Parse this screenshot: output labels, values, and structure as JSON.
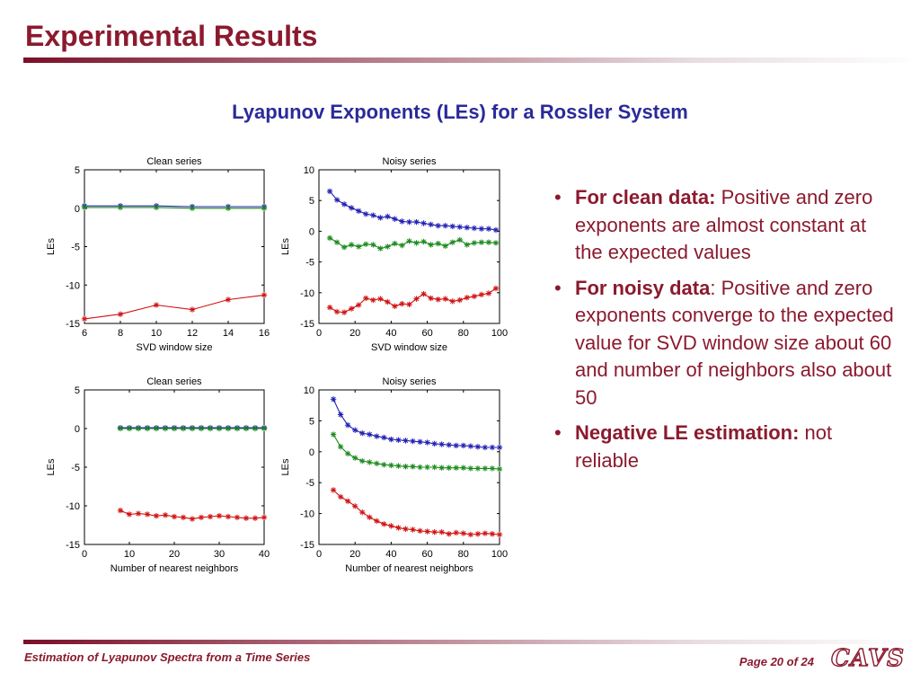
{
  "slide": {
    "title": "Experimental Results",
    "subtitle": "Lyapunov Exponents (LEs)  for a Rossler System"
  },
  "bullets": [
    {
      "bold": "For clean data:",
      "text": " Positive and zero exponents are almost constant at  the expected values"
    },
    {
      "bold": "For noisy data",
      "text": ": Positive and zero exponents converge to the expected value for SVD window size about 60 and number of neighbors also about 50"
    },
    {
      "bold": "Negative LE estimation:",
      "text": " not reliable"
    }
  ],
  "footer": {
    "left": "Estimation of Lyapunov Spectra from a Time Series",
    "page": "Page 20 of 24",
    "logo": "CAVS"
  },
  "colors": {
    "accent": "#8b1a2e",
    "subtitle": "#2a2a9a",
    "positive": "#1f1fb4",
    "zero": "#1a8a1a",
    "negative": "#d01010"
  },
  "chart_data": [
    {
      "type": "line",
      "title": "Clean series",
      "xlabel": "SVD window size",
      "ylabel": "LEs",
      "xlim": [
        6,
        16
      ],
      "ylim": [
        -15,
        5
      ],
      "xticks": [
        6,
        8,
        10,
        12,
        14,
        16
      ],
      "yticks": [
        5,
        0,
        -5,
        -10,
        -15
      ],
      "marker": "star",
      "series": [
        {
          "color": "#1f1fb4",
          "x": [
            6,
            8,
            10,
            12,
            14,
            16
          ],
          "values": [
            0.3,
            0.3,
            0.3,
            0.2,
            0.2,
            0.2
          ]
        },
        {
          "color": "#1a8a1a",
          "x": [
            6,
            8,
            10,
            12,
            14,
            16
          ],
          "values": [
            0.1,
            0.1,
            0.1,
            0.0,
            0.0,
            0.0
          ]
        },
        {
          "color": "#d01010",
          "x": [
            6,
            8,
            10,
            12,
            14,
            16
          ],
          "values": [
            -14.4,
            -13.8,
            -12.6,
            -13.2,
            -11.9,
            -11.3
          ]
        }
      ]
    },
    {
      "type": "line",
      "title": "Noisy series",
      "xlabel": "SVD window size",
      "ylabel": "LEs",
      "xlim": [
        0,
        100
      ],
      "ylim": [
        -15,
        10
      ],
      "xticks": [
        0,
        20,
        40,
        60,
        80,
        100
      ],
      "yticks": [
        10,
        5,
        0,
        -5,
        -10,
        -15
      ],
      "marker": "star",
      "series": [
        {
          "color": "#1f1fb4",
          "x": [
            6,
            10,
            14,
            18,
            22,
            26,
            30,
            34,
            38,
            42,
            46,
            50,
            54,
            58,
            62,
            66,
            70,
            74,
            78,
            82,
            86,
            90,
            94,
            98
          ],
          "values": [
            6.5,
            5.1,
            4.4,
            3.8,
            3.3,
            2.8,
            2.6,
            2.2,
            2.4,
            2.0,
            1.6,
            1.5,
            1.5,
            1.3,
            1.1,
            0.9,
            0.9,
            0.8,
            0.7,
            0.6,
            0.5,
            0.4,
            0.4,
            0.2
          ]
        },
        {
          "color": "#1a8a1a",
          "x": [
            6,
            10,
            14,
            18,
            22,
            26,
            30,
            34,
            38,
            42,
            46,
            50,
            54,
            58,
            62,
            66,
            70,
            74,
            78,
            82,
            86,
            90,
            94,
            98
          ],
          "values": [
            -1.1,
            -1.8,
            -2.6,
            -2.2,
            -2.5,
            -2.1,
            -2.2,
            -2.8,
            -2.5,
            -2.0,
            -2.3,
            -1.6,
            -1.9,
            -1.7,
            -2.2,
            -2.0,
            -2.4,
            -1.8,
            -1.4,
            -2.2,
            -1.9,
            -1.8,
            -1.8,
            -1.9
          ]
        },
        {
          "color": "#d01010",
          "x": [
            6,
            10,
            14,
            18,
            22,
            26,
            30,
            34,
            38,
            42,
            46,
            50,
            54,
            58,
            62,
            66,
            70,
            74,
            78,
            82,
            86,
            90,
            94,
            98
          ],
          "values": [
            -12.4,
            -13.1,
            -13.2,
            -12.6,
            -12.0,
            -10.9,
            -11.2,
            -11.0,
            -11.5,
            -12.2,
            -11.8,
            -11.9,
            -11.0,
            -10.2,
            -10.9,
            -11.1,
            -11.0,
            -11.4,
            -11.2,
            -10.8,
            -10.6,
            -10.3,
            -10.1,
            -9.3
          ]
        }
      ]
    },
    {
      "type": "line",
      "title": "Clean series",
      "xlabel": "Number of nearest neighbors",
      "ylabel": "LEs",
      "xlim": [
        0,
        40
      ],
      "ylim": [
        -15,
        5
      ],
      "xticks": [
        0,
        10,
        20,
        30,
        40
      ],
      "yticks": [
        5,
        0,
        -5,
        -10,
        -15
      ],
      "marker": "star",
      "series": [
        {
          "color": "#1f1fb4",
          "x": [
            8,
            10,
            12,
            14,
            16,
            18,
            20,
            22,
            24,
            26,
            28,
            30,
            32,
            34,
            36,
            38,
            40
          ],
          "values": [
            0.1,
            0.1,
            0.1,
            0.1,
            0.1,
            0.1,
            0.1,
            0.1,
            0.1,
            0.1,
            0.1,
            0.1,
            0.1,
            0.1,
            0.1,
            0.1,
            0.1
          ]
        },
        {
          "color": "#1a8a1a",
          "x": [
            8,
            10,
            12,
            14,
            16,
            18,
            20,
            22,
            24,
            26,
            28,
            30,
            32,
            34,
            36,
            38,
            40
          ],
          "values": [
            0.0,
            0.0,
            0.0,
            0.0,
            0.0,
            0.0,
            0.0,
            0.0,
            0.0,
            0.0,
            0.0,
            0.0,
            0.0,
            0.0,
            0.0,
            0.0,
            0.0
          ]
        },
        {
          "color": "#d01010",
          "x": [
            8,
            10,
            12,
            14,
            16,
            18,
            20,
            22,
            24,
            26,
            28,
            30,
            32,
            34,
            36,
            38,
            40
          ],
          "values": [
            -10.6,
            -11.1,
            -11.0,
            -11.1,
            -11.3,
            -11.2,
            -11.4,
            -11.5,
            -11.7,
            -11.5,
            -11.4,
            -11.3,
            -11.4,
            -11.5,
            -11.6,
            -11.6,
            -11.5
          ]
        }
      ]
    },
    {
      "type": "line",
      "title": "Noisy series",
      "xlabel": "Number of nearest neighbors",
      "ylabel": "LEs",
      "xlim": [
        0,
        100
      ],
      "ylim": [
        -15,
        10
      ],
      "xticks": [
        0,
        20,
        40,
        60,
        80,
        100
      ],
      "yticks": [
        10,
        5,
        0,
        -5,
        -10,
        -15
      ],
      "marker": "star",
      "series": [
        {
          "color": "#1f1fb4",
          "x": [
            8,
            12,
            16,
            20,
            24,
            28,
            32,
            36,
            40,
            44,
            48,
            52,
            56,
            60,
            64,
            68,
            72,
            76,
            80,
            84,
            88,
            92,
            96,
            100
          ],
          "values": [
            8.5,
            6.0,
            4.3,
            3.5,
            3.0,
            2.8,
            2.5,
            2.3,
            2.0,
            1.9,
            1.8,
            1.7,
            1.6,
            1.5,
            1.3,
            1.2,
            1.1,
            1.0,
            1.0,
            0.9,
            0.8,
            0.7,
            0.7,
            0.7
          ]
        },
        {
          "color": "#1a8a1a",
          "x": [
            8,
            12,
            16,
            20,
            24,
            28,
            32,
            36,
            40,
            44,
            48,
            52,
            56,
            60,
            64,
            68,
            72,
            76,
            80,
            84,
            88,
            92,
            96,
            100
          ],
          "values": [
            2.8,
            0.8,
            -0.3,
            -1.0,
            -1.5,
            -1.7,
            -1.9,
            -2.1,
            -2.2,
            -2.3,
            -2.4,
            -2.4,
            -2.5,
            -2.5,
            -2.5,
            -2.6,
            -2.6,
            -2.6,
            -2.6,
            -2.7,
            -2.7,
            -2.7,
            -2.7,
            -2.8
          ]
        },
        {
          "color": "#d01010",
          "x": [
            8,
            12,
            16,
            20,
            24,
            28,
            32,
            36,
            40,
            44,
            48,
            52,
            56,
            60,
            64,
            68,
            72,
            76,
            80,
            84,
            88,
            92,
            96,
            100
          ],
          "values": [
            -6.2,
            -7.3,
            -8.0,
            -8.8,
            -9.8,
            -10.6,
            -11.2,
            -11.7,
            -12.0,
            -12.3,
            -12.5,
            -12.6,
            -12.8,
            -12.9,
            -13.0,
            -13.0,
            -13.3,
            -13.1,
            -13.2,
            -13.4,
            -13.3,
            -13.2,
            -13.3,
            -13.4
          ]
        }
      ]
    }
  ]
}
